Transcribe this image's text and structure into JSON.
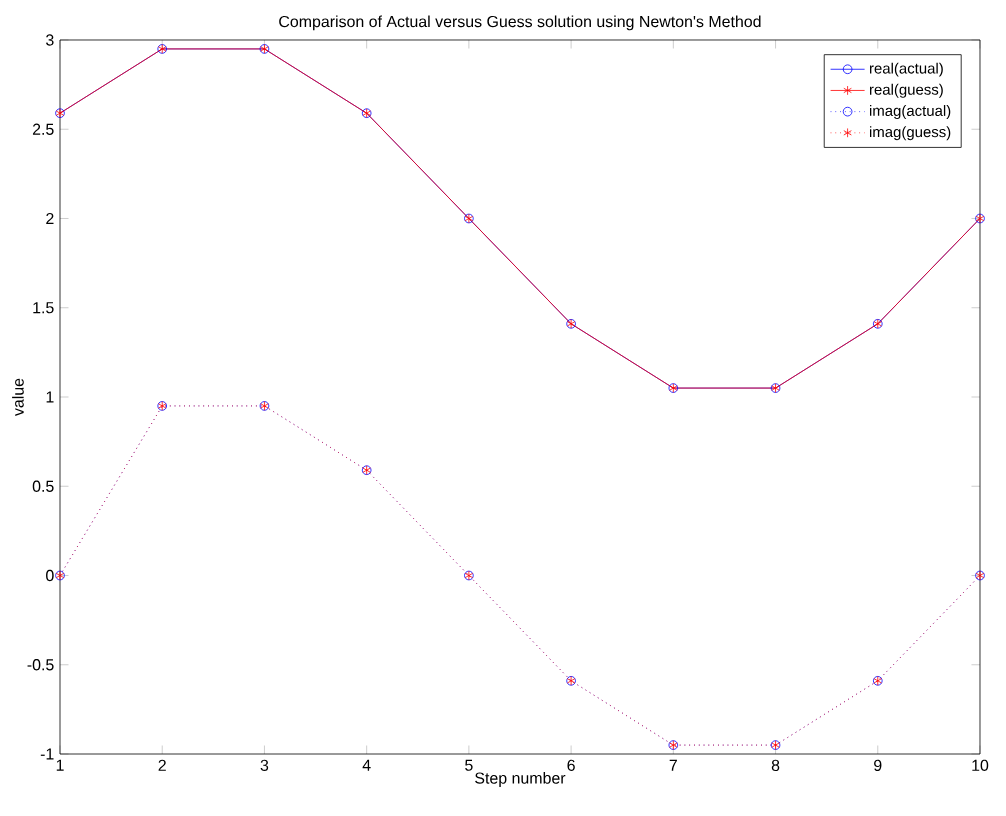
{
  "chart_data": {
    "type": "line",
    "title": "Comparison of Actual versus Guess solution using Newton's Method",
    "xlabel": "Step number",
    "ylabel": "value",
    "x": [
      1,
      2,
      3,
      4,
      5,
      6,
      7,
      8,
      9,
      10
    ],
    "series": [
      {
        "name": "real(actual)",
        "color": "#0000ff",
        "marker": "circle",
        "line_style": "solid",
        "values": [
          2.59,
          2.95,
          2.95,
          2.59,
          2.0,
          1.41,
          1.05,
          1.05,
          1.41,
          2.0
        ]
      },
      {
        "name": "real(guess)",
        "color": "#ff0000",
        "marker": "cross",
        "line_style": "solid",
        "values": [
          2.59,
          2.95,
          2.95,
          2.59,
          2.0,
          1.41,
          1.05,
          1.05,
          1.41,
          2.0
        ]
      },
      {
        "name": "imag(actual)",
        "color": "#0000ff",
        "marker": "circle",
        "line_style": "dotted",
        "values": [
          0,
          0.95,
          0.95,
          0.59,
          0,
          -0.59,
          -0.95,
          -0.95,
          -0.59,
          0
        ]
      },
      {
        "name": "imag(guess)",
        "color": "#ff0000",
        "marker": "cross",
        "line_style": "dotted",
        "values": [
          0,
          0.95,
          0.95,
          0.59,
          0,
          -0.59,
          -0.95,
          -0.95,
          -0.59,
          0
        ]
      }
    ],
    "xlim": [
      1,
      10
    ],
    "ylim": [
      -1,
      3
    ],
    "xticks": [
      1,
      2,
      3,
      4,
      5,
      6,
      7,
      8,
      9,
      10
    ],
    "yticks": [
      -1,
      -0.5,
      0,
      0.5,
      1,
      1.5,
      2,
      2.5,
      3
    ],
    "grid": false,
    "legend": "top right"
  }
}
